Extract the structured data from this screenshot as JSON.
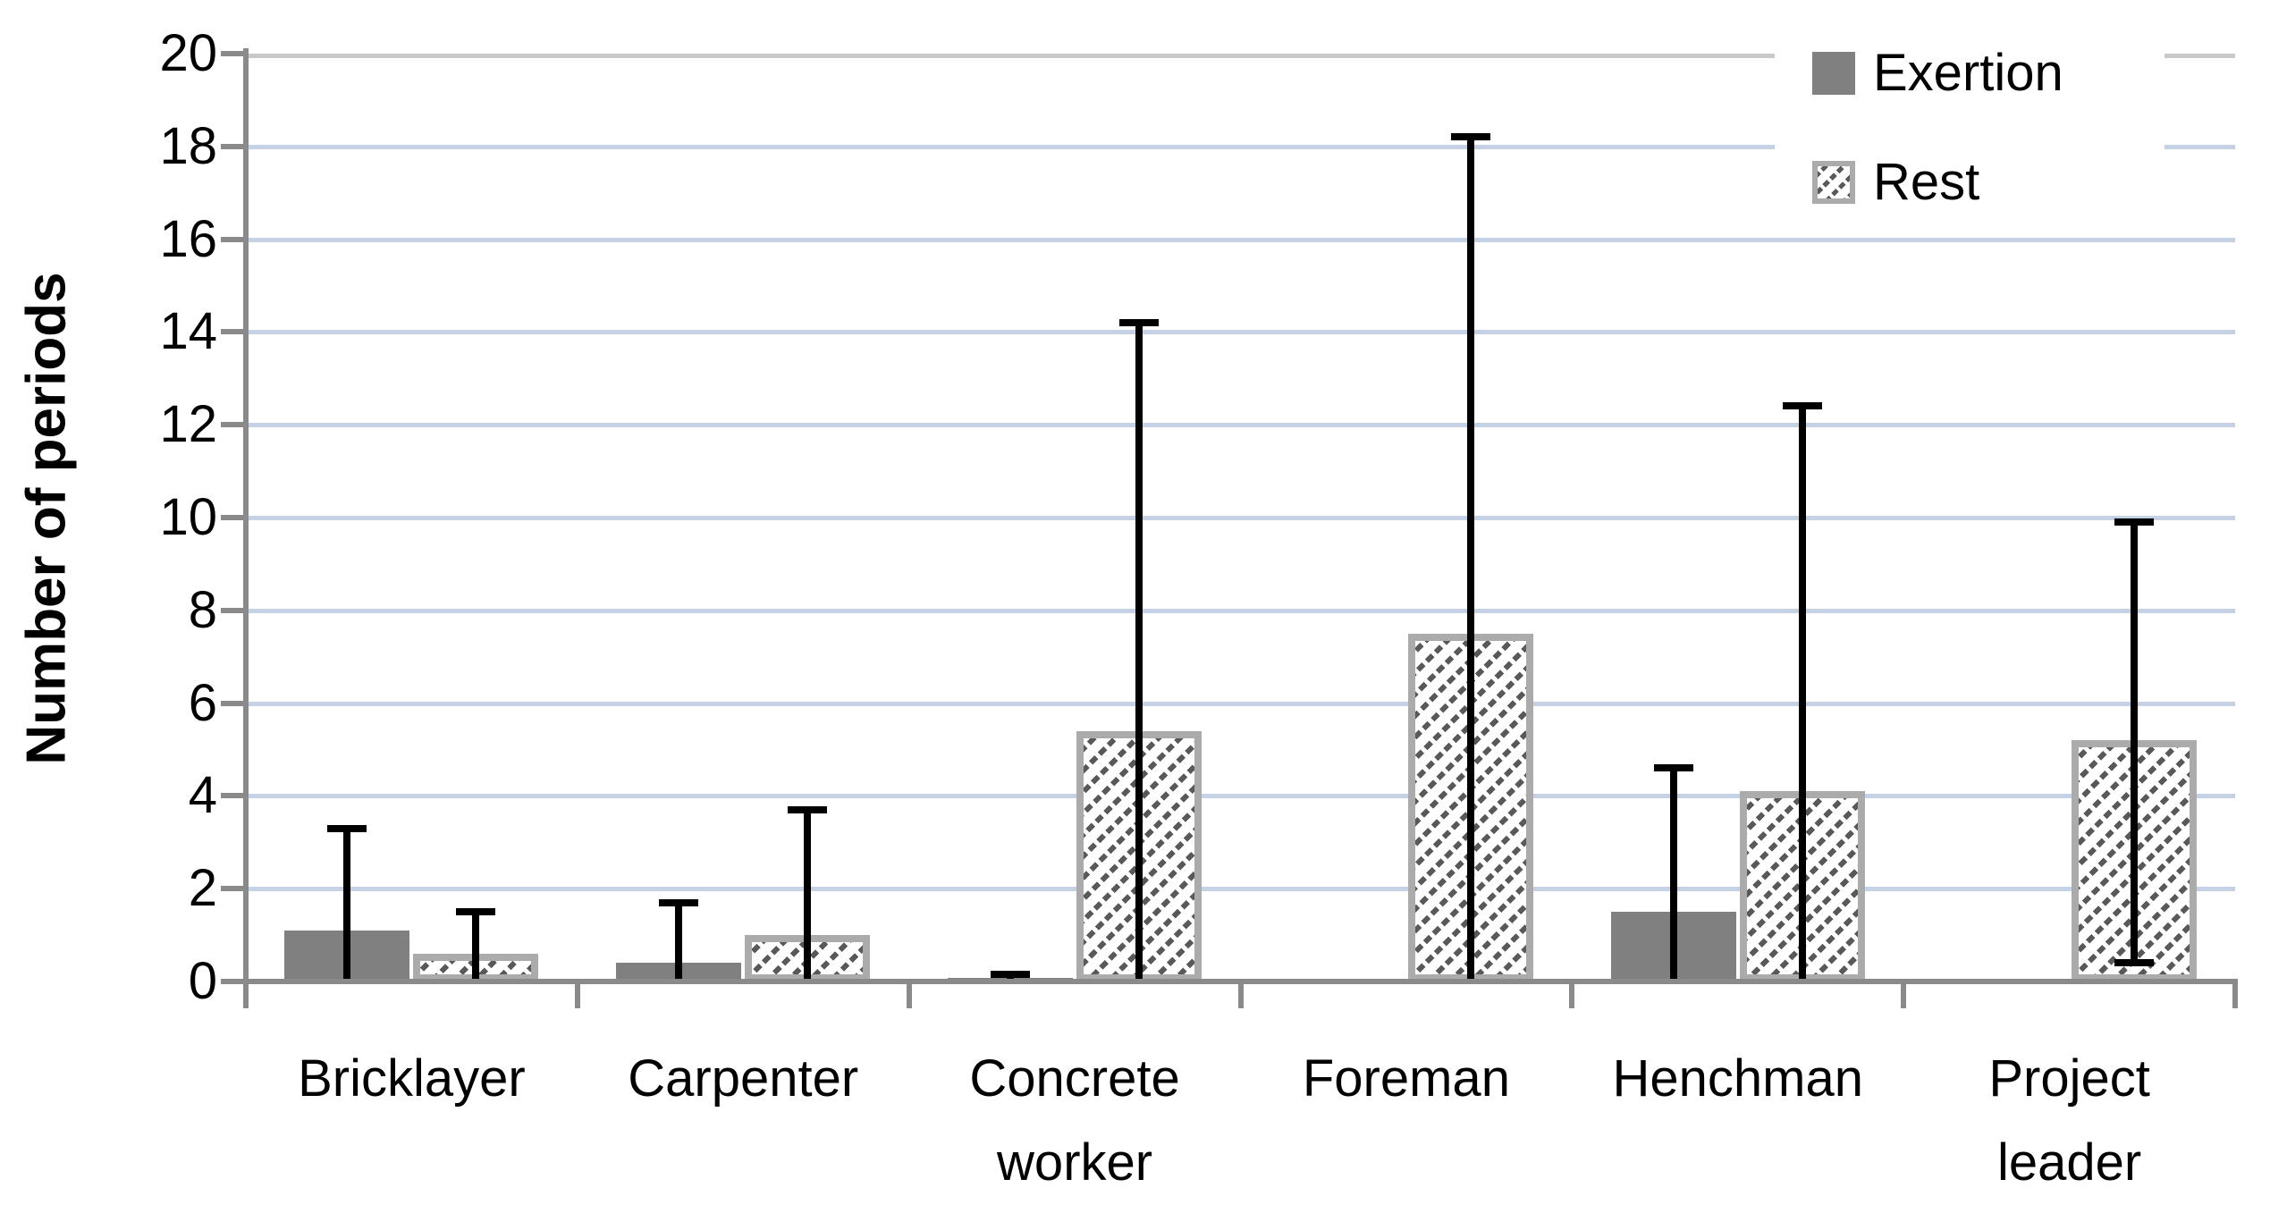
{
  "chart_data": {
    "type": "bar",
    "title": "",
    "xlabel": "",
    "ylabel": "Number of periods",
    "ylim": [
      0,
      20
    ],
    "yticks": [
      0,
      2,
      4,
      6,
      8,
      10,
      12,
      14,
      16,
      18,
      20
    ],
    "gridlines": "horizontal every 2, pale blue; top line gray",
    "legend_position": "top-right",
    "categories": [
      [
        "Bricklayer"
      ],
      [
        "Carpenter"
      ],
      [
        "Concrete",
        "worker"
      ],
      [
        "Foreman"
      ],
      [
        "Henchman"
      ],
      [
        "Project",
        "leader"
      ]
    ],
    "series": [
      {
        "name": "Exertion",
        "style": "solid-gray",
        "values": [
          1.1,
          0.4,
          0.05,
          null,
          1.5,
          null
        ],
        "error_high": [
          3.3,
          1.7,
          0.15,
          null,
          4.6,
          null
        ],
        "error_low": [
          0,
          0,
          0,
          null,
          0,
          null
        ]
      },
      {
        "name": "Rest",
        "style": "diagonal-hatch",
        "values": [
          0.6,
          1.0,
          5.4,
          7.5,
          4.1,
          5.2
        ],
        "error_high": [
          1.5,
          3.7,
          14.2,
          18.2,
          12.4,
          9.9
        ],
        "error_low": [
          0,
          0,
          0,
          0,
          0,
          0.4
        ]
      }
    ],
    "colors": {
      "exertion_fill": "#808080",
      "rest_border": "#ababab",
      "rest_hatch": "#595959",
      "gridline": "#c5d1e4",
      "gridline_top": "#c9c9c9",
      "axis": "#8a8a8a",
      "error_bar": "#000000",
      "text": "#000000",
      "background": "#ffffff"
    }
  },
  "legend": {
    "exertion_label": "Exertion",
    "rest_label": "Rest"
  }
}
